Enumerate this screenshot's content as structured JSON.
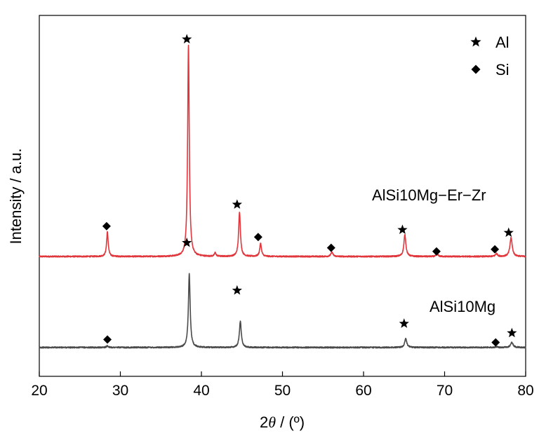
{
  "chart_data": {
    "type": "line",
    "xlabel_prefix": "2",
    "xlabel_symbol": "θ",
    "xlabel_suffix": " / (º)",
    "ylabel": "Intensity / a.u.",
    "xlim": [
      20,
      80
    ],
    "xticks": [
      "20",
      "30",
      "40",
      "50",
      "60",
      "70",
      "80"
    ],
    "grid": false,
    "legend": {
      "placement": "top-right",
      "entries": [
        {
          "marker": "star",
          "label": "Al"
        },
        {
          "marker": "diamond",
          "label": "Si"
        }
      ]
    },
    "series": [
      {
        "name": "AlSi10Mg−Er−Zr",
        "color": "#e0363c",
        "baseline": 0.36,
        "peaks": [
          {
            "x": 28.4,
            "height": 0.34,
            "width": 0.12
          },
          {
            "x": 38.4,
            "height": 2.92,
            "width": 0.12
          },
          {
            "x": 41.7,
            "height": 0.05,
            "width": 0.12
          },
          {
            "x": 44.7,
            "height": 0.62,
            "width": 0.13
          },
          {
            "x": 47.3,
            "height": 0.18,
            "width": 0.13
          },
          {
            "x": 56.1,
            "height": 0.06,
            "width": 0.15
          },
          {
            "x": 65.1,
            "height": 0.3,
            "width": 0.15
          },
          {
            "x": 69.1,
            "height": 0.03,
            "width": 0.15
          },
          {
            "x": 76.4,
            "height": 0.04,
            "width": 0.15
          },
          {
            "x": 78.2,
            "height": 0.26,
            "width": 0.17
          }
        ]
      },
      {
        "name": "AlSi10Mg",
        "color": "#4a4a4a",
        "baseline": -0.9,
        "peaks": [
          {
            "x": 28.4,
            "height": 0.02,
            "width": 0.15
          },
          {
            "x": 38.5,
            "height": 1.02,
            "width": 0.13
          },
          {
            "x": 44.8,
            "height": 0.36,
            "width": 0.14
          },
          {
            "x": 65.2,
            "height": 0.12,
            "width": 0.16
          },
          {
            "x": 76.4,
            "height": 0.01,
            "width": 0.16
          },
          {
            "x": 78.3,
            "height": 0.07,
            "width": 0.18
          }
        ]
      }
    ],
    "phase_markers": [
      {
        "marker": "diamond",
        "x": 28.3,
        "y": 0.78
      },
      {
        "marker": "star",
        "x": 38.2,
        "y": 3.37
      },
      {
        "marker": "star",
        "x": 44.4,
        "y": 1.08
      },
      {
        "marker": "diamond",
        "x": 47.0,
        "y": 0.63
      },
      {
        "marker": "diamond",
        "x": 56.0,
        "y": 0.48
      },
      {
        "marker": "star",
        "x": 64.8,
        "y": 0.73
      },
      {
        "marker": "diamond",
        "x": 69.0,
        "y": 0.43
      },
      {
        "marker": "diamond",
        "x": 76.2,
        "y": 0.46
      },
      {
        "marker": "star",
        "x": 77.9,
        "y": 0.69
      },
      {
        "marker": "star",
        "x": 38.2,
        "y": 0.55
      },
      {
        "marker": "star",
        "x": 44.4,
        "y": -0.11
      },
      {
        "marker": "diamond",
        "x": 28.4,
        "y": -0.79
      },
      {
        "marker": "star",
        "x": 65.0,
        "y": -0.57
      },
      {
        "marker": "diamond",
        "x": 76.3,
        "y": -0.83
      },
      {
        "marker": "star",
        "x": 78.3,
        "y": -0.7
      }
    ],
    "ylim": [
      -1.3,
      3.7
    ]
  }
}
